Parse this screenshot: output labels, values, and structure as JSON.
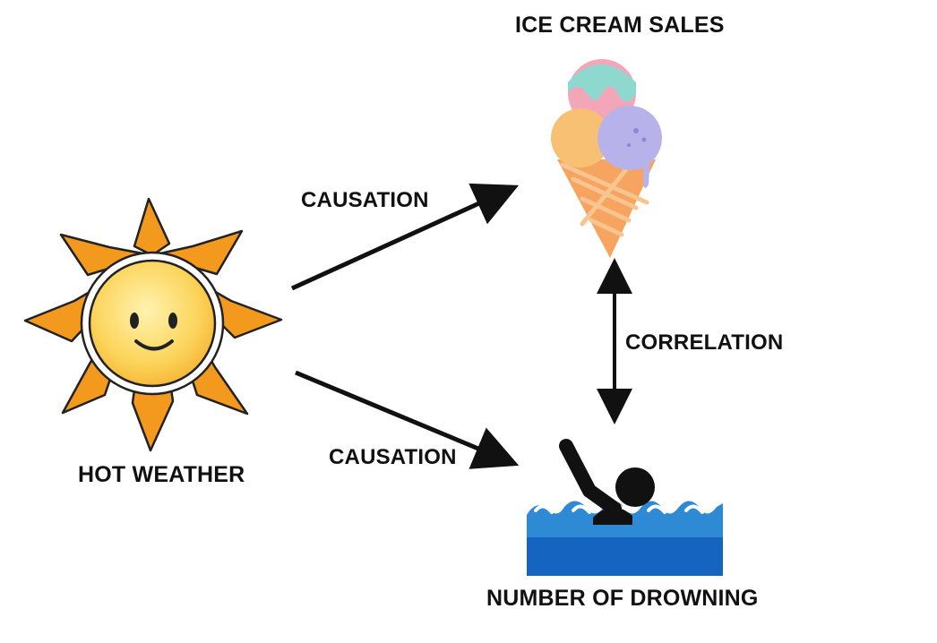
{
  "nodes": {
    "ice_cream": {
      "label": "ICE CREAM SALES",
      "icon": "ice-cream-cone-icon"
    },
    "hot_weather": {
      "label": "HOT WEATHER",
      "icon": "smiling-sun-icon"
    },
    "drowning": {
      "label": "NUMBER OF DROWNING",
      "icon": "drowning-swimmer-icon"
    }
  },
  "edges": [
    {
      "from": "hot_weather",
      "to": "ice_cream",
      "label": "CAUSATION",
      "direction": "one-way"
    },
    {
      "from": "hot_weather",
      "to": "drowning",
      "label": "CAUSATION",
      "direction": "one-way"
    },
    {
      "from": "ice_cream",
      "to": "drowning",
      "label": "CORRELATION",
      "direction": "two-way"
    }
  ],
  "colors": {
    "sun_ray": "#f39a1e",
    "sun_face": "#fcd45a",
    "water": "#1565c0",
    "arrow": "#111111",
    "scoop_pink": "#f3a6b8",
    "scoop_orange": "#f8c073",
    "scoop_purple": "#b7b2ea",
    "cone": "#f6a45f"
  }
}
